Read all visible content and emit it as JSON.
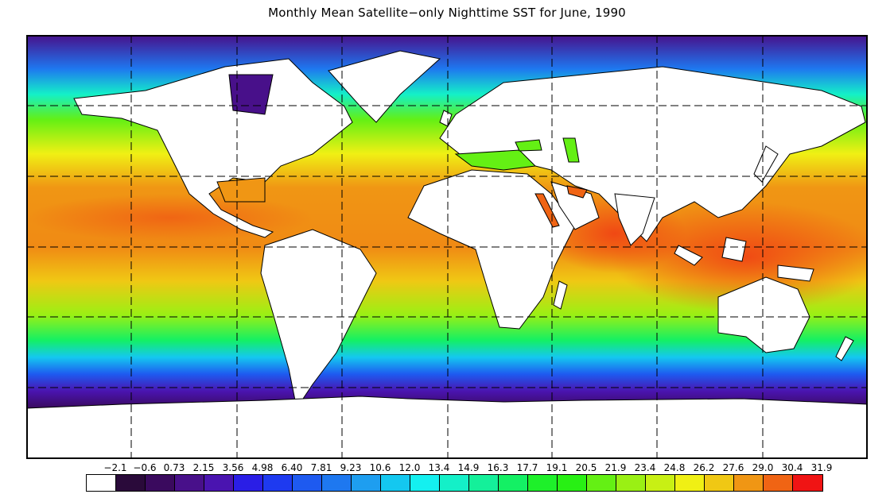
{
  "title": "Monthly Mean Satellite−only Nighttime SST for June, 1990",
  "map": {
    "projection": "equirectangular",
    "grid": "dashed",
    "land_color": "#ffffff",
    "coastline_color": "#000000"
  },
  "legend": {
    "labels": [
      "−2.1",
      "−0.6",
      "0.73",
      "2.15",
      "3.56",
      "4.98",
      "6.40",
      "7.81",
      "9.23",
      "10.6",
      "12.0",
      "13.4",
      "14.9",
      "16.3",
      "17.7",
      "19.1",
      "20.5",
      "21.9",
      "23.4",
      "24.8",
      "26.2",
      "27.6",
      "29.0",
      "30.4",
      "31.9"
    ],
    "colors": [
      "#ffffff",
      "#2a0a3a",
      "#3a0a5e",
      "#48108a",
      "#4a14b0",
      "#2a1ee6",
      "#1e3af0",
      "#1e5af0",
      "#1e78f0",
      "#1e9ef0",
      "#14c8f0",
      "#14f0f0",
      "#14f0c8",
      "#14f09a",
      "#14f064",
      "#1ef02a",
      "#28f014",
      "#64f014",
      "#9af014",
      "#c8f014",
      "#f0f014",
      "#f0c814",
      "#f09614",
      "#f06414",
      "#f01414"
    ]
  }
}
